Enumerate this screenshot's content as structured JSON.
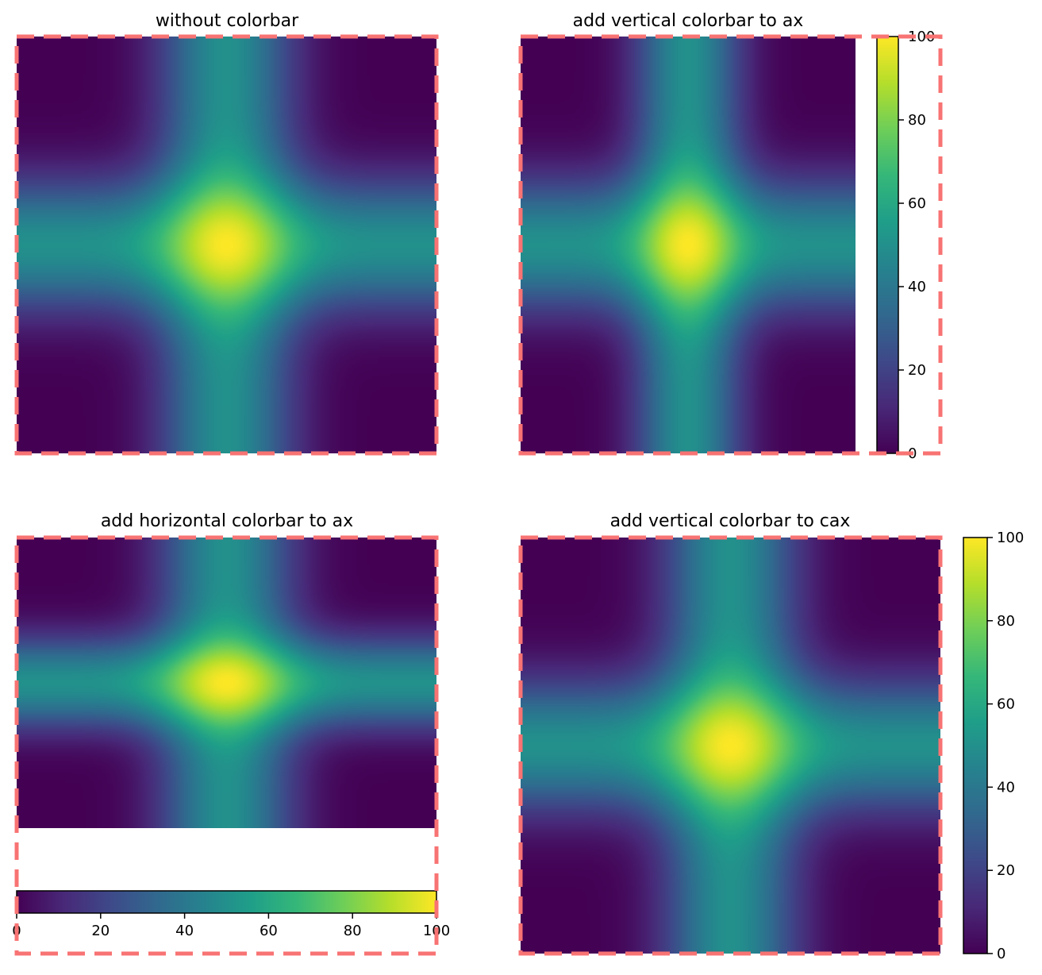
{
  "chart_data": [
    {
      "type": "heatmap",
      "title": "without colorbar",
      "colormap": "viridis",
      "value_range": [
        0,
        100
      ],
      "peak": "center",
      "colorbar": "none",
      "axes_visible": false
    },
    {
      "type": "heatmap",
      "title": "add vertical colorbar to ax",
      "colormap": "viridis",
      "value_range": [
        0,
        100
      ],
      "peak": "center",
      "colorbar": "vertical-right-inside-ax",
      "colorbar_ticks": [
        "0",
        "20",
        "40",
        "60",
        "80",
        "100"
      ],
      "axes_visible": false
    },
    {
      "type": "heatmap",
      "title": "add horizontal colorbar to ax",
      "colormap": "viridis",
      "value_range": [
        0,
        100
      ],
      "peak": "center",
      "colorbar": "horizontal-bottom-inside-ax",
      "colorbar_ticks": [
        "0",
        "20",
        "40",
        "60",
        "80",
        "100"
      ],
      "axes_visible": false
    },
    {
      "type": "heatmap",
      "title": "add vertical colorbar to cax",
      "colormap": "viridis",
      "value_range": [
        0,
        100
      ],
      "peak": "center",
      "colorbar": "vertical-right-separate-cax",
      "colorbar_ticks": [
        "0",
        "20",
        "40",
        "60",
        "80",
        "100"
      ],
      "axes_visible": false
    }
  ],
  "colors": {
    "outline": "#f87373",
    "viridis": [
      "#440154",
      "#482878",
      "#3e4989",
      "#31688e",
      "#26828e",
      "#1f9e89",
      "#35b779",
      "#6ece58",
      "#b5de2b",
      "#fde725"
    ]
  }
}
